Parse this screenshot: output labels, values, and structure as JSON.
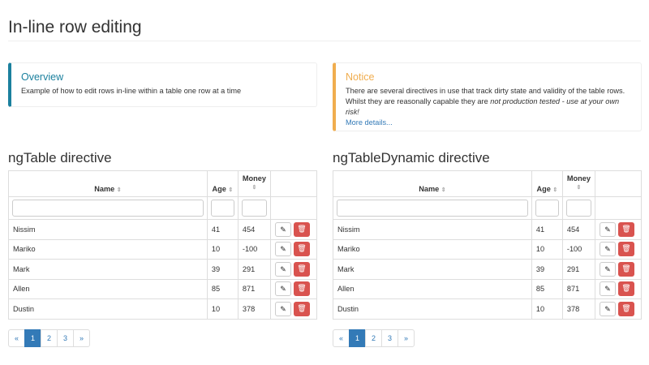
{
  "title": "In-line row editing",
  "overview": {
    "title": "Overview",
    "text": "Example of how to edit rows in-line within a table one row at a time"
  },
  "notice": {
    "title": "Notice",
    "text1": "There are several directives in use that track dirty state and validity of the table rows. Whilst they are reasonally capable they are ",
    "text_em": "not production tested - use at your own risk!",
    "link": "More details..."
  },
  "columns": {
    "name": "Name",
    "age": "Age",
    "money": "Money"
  },
  "icons": {
    "sort": "sort-icon",
    "edit": "pencil-icon",
    "delete": "trash-icon"
  },
  "colors": {
    "accent": "#337ab7",
    "danger": "#d9534f",
    "overview": "#1b809e",
    "notice": "#f0ad4e"
  },
  "tables": [
    {
      "heading": "ngTable directive",
      "rows": [
        [
          "Nissim",
          "41",
          "454"
        ],
        [
          "Mariko",
          "10",
          "-100"
        ],
        [
          "Mark",
          "39",
          "291"
        ],
        [
          "Allen",
          "85",
          "871"
        ],
        [
          "Dustin",
          "10",
          "378"
        ]
      ],
      "pager": [
        "«",
        "1",
        "2",
        "3",
        "»"
      ],
      "current_page": "1"
    },
    {
      "heading": "ngTableDynamic directive",
      "rows": [
        [
          "Nissim",
          "41",
          "454"
        ],
        [
          "Mariko",
          "10",
          "-100"
        ],
        [
          "Mark",
          "39",
          "291"
        ],
        [
          "Allen",
          "85",
          "871"
        ],
        [
          "Dustin",
          "10",
          "378"
        ]
      ],
      "pager": [
        "«",
        "1",
        "2",
        "3",
        "»"
      ],
      "current_page": "1"
    }
  ]
}
